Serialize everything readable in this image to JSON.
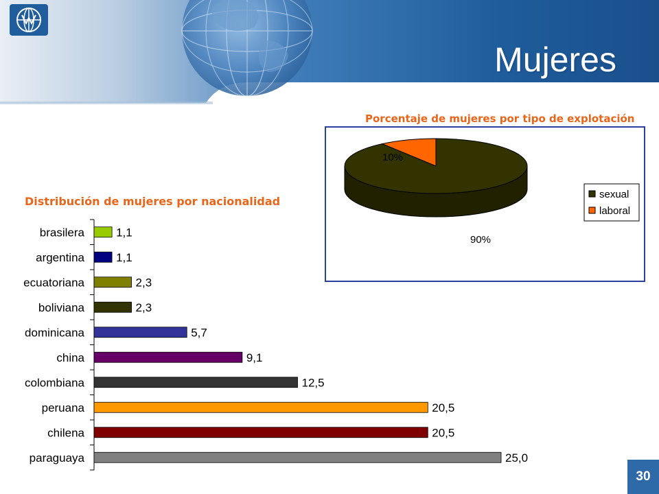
{
  "slide": {
    "title": "Mujeres",
    "page_number": "30"
  },
  "colors": {
    "header_blue": "#1f5d9c",
    "title_orange": "#e8651a",
    "pie_border": "#2a3fa0",
    "page_badge": "#2e6aa8"
  },
  "chart_data": [
    {
      "type": "bar",
      "orientation": "horizontal",
      "title": "Distribución de mujeres por nacionalidad",
      "categories": [
        "brasilera",
        "argentina",
        "ecuatoriana",
        "boliviana",
        "dominicana",
        "china",
        "colombiana",
        "peruana",
        "chilena",
        "paraguaya"
      ],
      "values": [
        1.1,
        1.1,
        2.3,
        2.3,
        5.7,
        9.1,
        12.5,
        20.5,
        20.5,
        25.0
      ],
      "data_labels": [
        "1,1",
        "1,1",
        "2,3",
        "2,3",
        "5,7",
        "9,1",
        "12,5",
        "20,5",
        "20,5",
        "25,0"
      ],
      "bar_colors": [
        "#99cc00",
        "#000080",
        "#808000",
        "#333300",
        "#333399",
        "#660066",
        "#333333",
        "#ff9900",
        "#800000",
        "#808080"
      ],
      "xlim": [
        0,
        25
      ],
      "grid": false
    },
    {
      "type": "pie",
      "style": "3d",
      "title": "Porcentaje de mujeres por tipo de explotación",
      "categories": [
        "sexual",
        "laboral"
      ],
      "values": [
        90,
        10
      ],
      "data_labels": [
        "90%",
        "10%"
      ],
      "colors": [
        "#333300",
        "#ff6600"
      ],
      "legend_position": "right"
    }
  ]
}
